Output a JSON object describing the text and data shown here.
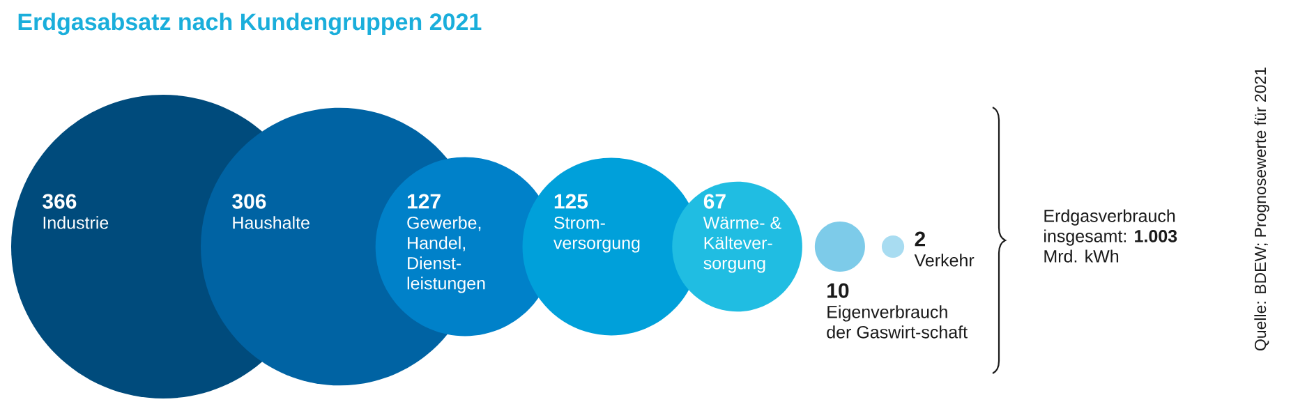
{
  "chart_data": {
    "type": "other",
    "title": "Erdgasabsatz nach Kundengruppen 2021",
    "categories": [
      "Industrie",
      "Haushalte",
      "Gewerbe, Handel, Dienst-leistungen",
      "Strom-versorgung",
      "Wärme- & Kältever-sorgung",
      "Eigenverbrauch der Gaswirt-schaft",
      "Verkehr"
    ],
    "values": [
      366,
      306,
      127,
      125,
      67,
      10,
      2
    ],
    "colors": [
      "#004b7c",
      "#0063a3",
      "#0081c9",
      "#00a0da",
      "#20bde2",
      "#7dcbe9",
      "#a8dcf1"
    ],
    "data_labels": true,
    "annotations": [
      "Erdgasverbrauch insgesamt: **1.003** Mrd. kWh",
      "Quelle: BDEW; Prognosewerte für 2021"
    ]
  }
}
